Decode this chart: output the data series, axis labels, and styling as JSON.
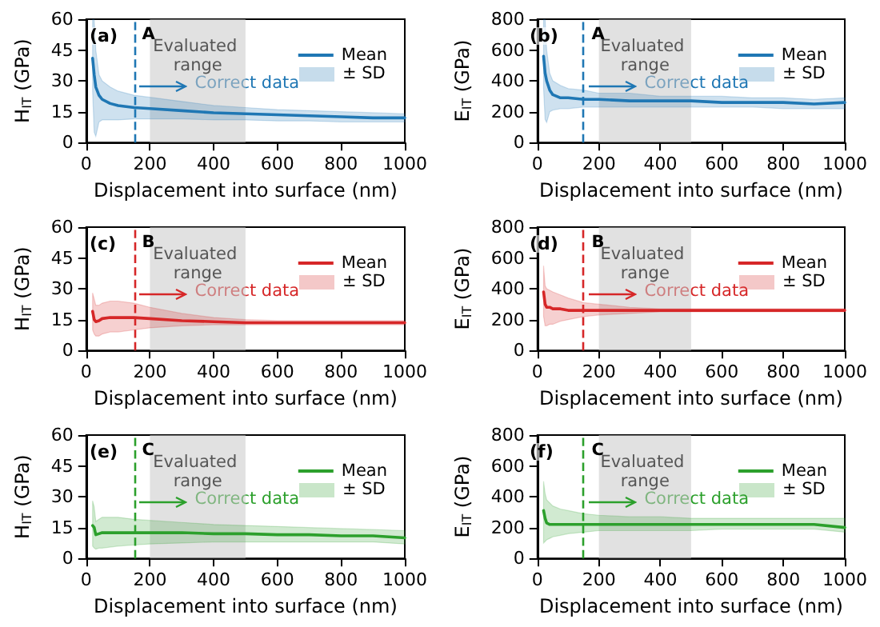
{
  "chart_data": [
    {
      "type": "line",
      "ylabel": "H$_{IT}$ (GPa)",
      "xlabel": "Displacement into surface (nm)",
      "x": [
        20,
        25,
        30,
        40,
        50,
        75,
        100,
        150,
        200,
        300,
        400,
        500,
        600,
        700,
        800,
        900,
        1000
      ],
      "xlim": [
        0,
        1000
      ],
      "xticks": [
        0,
        200,
        400,
        600,
        800,
        1000
      ],
      "ylim": [
        0,
        60
      ],
      "yticks": [
        0,
        15,
        30,
        45,
        60
      ],
      "legend": "top right",
      "annotations": [
        "(a)",
        "A",
        "Correct data",
        "± SD"
      ],
      "ref_lines": [
        {
          "axis": "x",
          "value": 150,
          "color": "#1f77b4",
          "line_style": "dashed"
        }
      ],
      "bands": [
        {
          "axis": "x",
          "from": 200,
          "to": 500,
          "label": "Evaluated range",
          "color": "#c8c8c8"
        }
      ],
      "series": [
        {
          "name": "Mean",
          "color": "#1f77b4",
          "values": [
            41,
            33,
            27,
            23,
            21,
            19,
            18,
            17,
            16.5,
            15.5,
            14.5,
            14,
            13.5,
            13,
            12.5,
            12,
            12
          ],
          "lower": [
            25,
            5,
            3,
            10,
            11,
            11,
            11,
            11.5,
            11.5,
            11.5,
            11,
            11,
            10.5,
            10.5,
            10,
            10,
            10
          ],
          "upper": [
            60,
            60,
            45,
            33,
            30,
            27,
            25,
            23,
            22,
            20,
            18,
            17,
            16,
            15.5,
            15,
            14.5,
            14
          ]
        }
      ]
    },
    {
      "type": "line",
      "ylabel": "E$_{IT}$ (GPa)",
      "xlabel": "Displacement into surface (nm)",
      "x": [
        20,
        25,
        30,
        40,
        50,
        75,
        100,
        150,
        200,
        300,
        400,
        500,
        600,
        700,
        800,
        900,
        1000
      ],
      "xlim": [
        0,
        1000
      ],
      "xticks": [
        0,
        200,
        400,
        600,
        800,
        1000
      ],
      "ylim": [
        0,
        800
      ],
      "yticks": [
        0,
        200,
        400,
        600,
        800
      ],
      "legend": "top right",
      "annotations": [
        "(b)",
        "A",
        "Correct data",
        "± SD"
      ],
      "ref_lines": [
        {
          "axis": "x",
          "value": 150,
          "color": "#1f77b4",
          "line_style": "dashed"
        }
      ],
      "bands": [
        {
          "axis": "x",
          "from": 200,
          "to": 500,
          "label": "Evaluated range",
          "color": "#c8c8c8"
        }
      ],
      "series": [
        {
          "name": "Mean",
          "color": "#1f77b4",
          "values": [
            560,
            450,
            400,
            340,
            310,
            290,
            290,
            280,
            280,
            270,
            270,
            270,
            260,
            260,
            260,
            250,
            260
          ],
          "lower": [
            350,
            150,
            130,
            200,
            210,
            220,
            220,
            230,
            230,
            230,
            230,
            230,
            230,
            230,
            220,
            220,
            220
          ],
          "upper": [
            800,
            800,
            600,
            450,
            400,
            370,
            350,
            340,
            320,
            320,
            300,
            300,
            300,
            290,
            290,
            280,
            290
          ]
        }
      ]
    },
    {
      "type": "line",
      "ylabel": "H$_{IT}$ (GPa)",
      "xlabel": "Displacement into surface (nm)",
      "x": [
        20,
        25,
        30,
        40,
        50,
        75,
        100,
        150,
        200,
        300,
        400,
        500,
        600,
        700,
        800,
        900,
        1000
      ],
      "xlim": [
        0,
        1000
      ],
      "xticks": [
        0,
        200,
        400,
        600,
        800,
        1000
      ],
      "ylim": [
        0,
        60
      ],
      "yticks": [
        0,
        15,
        30,
        45,
        60
      ],
      "legend": "top right",
      "annotations": [
        "(c)",
        "B",
        "Correct data",
        "± SD"
      ],
      "ref_lines": [
        {
          "axis": "x",
          "value": 150,
          "color": "#d62728",
          "line_style": "dashed"
        }
      ],
      "bands": [
        {
          "axis": "x",
          "from": 200,
          "to": 500,
          "label": "Evaluated range",
          "color": "#c8c8c8"
        }
      ],
      "series": [
        {
          "name": "Mean",
          "color": "#d62728",
          "values": [
            19,
            15,
            14,
            14.5,
            15.5,
            16,
            16,
            16,
            15.5,
            14.5,
            14,
            13.5,
            13.5,
            13.5,
            13.5,
            13.5,
            13.5
          ],
          "lower": [
            10,
            8,
            7,
            7,
            8,
            9,
            9,
            10,
            11,
            12,
            12.5,
            12.5,
            12.5,
            12.5,
            12.5,
            12.5,
            12.5
          ],
          "upper": [
            28,
            25,
            22,
            22,
            23,
            24,
            24,
            23,
            21,
            18,
            16,
            15,
            14.5,
            14.5,
            14.5,
            14.5,
            14.5
          ]
        }
      ]
    },
    {
      "type": "line",
      "ylabel": "E$_{IT}$ (GPa)",
      "xlabel": "Displacement into surface (nm)",
      "x": [
        20,
        25,
        30,
        40,
        50,
        75,
        100,
        150,
        200,
        300,
        400,
        500,
        600,
        700,
        800,
        900,
        1000
      ],
      "xlim": [
        0,
        1000
      ],
      "xticks": [
        0,
        200,
        400,
        600,
        800,
        1000
      ],
      "ylim": [
        0,
        800
      ],
      "yticks": [
        0,
        200,
        400,
        600,
        800
      ],
      "legend": "top right",
      "annotations": [
        "(d)",
        "B",
        "Correct data",
        "± SD"
      ],
      "ref_lines": [
        {
          "axis": "x",
          "value": 150,
          "color": "#d62728",
          "line_style": "dashed"
        }
      ],
      "bands": [
        {
          "axis": "x",
          "from": 200,
          "to": 500,
          "label": "Evaluated range",
          "color": "#c8c8c8"
        }
      ],
      "series": [
        {
          "name": "Mean",
          "color": "#d62728",
          "values": [
            380,
            300,
            280,
            280,
            270,
            270,
            260,
            260,
            260,
            260,
            260,
            260,
            260,
            260,
            260,
            260,
            260
          ],
          "lower": [
            220,
            160,
            160,
            170,
            170,
            190,
            200,
            220,
            230,
            240,
            250,
            250,
            250,
            250,
            250,
            250,
            250
          ],
          "upper": [
            550,
            420,
            400,
            390,
            380,
            360,
            340,
            310,
            300,
            280,
            270,
            270,
            270,
            270,
            270,
            270,
            270
          ]
        }
      ]
    },
    {
      "type": "line",
      "ylabel": "H$_{IT}$ (GPa)",
      "xlabel": "Displacement into surface (nm)",
      "x": [
        20,
        25,
        30,
        40,
        50,
        75,
        100,
        150,
        200,
        300,
        400,
        500,
        600,
        700,
        800,
        900,
        1000
      ],
      "xlim": [
        0,
        1000
      ],
      "xticks": [
        0,
        200,
        400,
        600,
        800,
        1000
      ],
      "ylim": [
        0,
        60
      ],
      "yticks": [
        0,
        15,
        30,
        45,
        60
      ],
      "legend": "top right",
      "annotations": [
        "(e)",
        "C",
        "Correct data",
        "± SD"
      ],
      "ref_lines": [
        {
          "axis": "x",
          "value": 150,
          "color": "#2ca02c",
          "line_style": "dashed"
        }
      ],
      "bands": [
        {
          "axis": "x",
          "from": 200,
          "to": 500,
          "label": "Evaluated range",
          "color": "#c8c8c8"
        }
      ],
      "series": [
        {
          "name": "Mean",
          "color": "#2ca02c",
          "values": [
            16,
            15,
            11.5,
            12,
            12.5,
            12.5,
            12.5,
            12.5,
            12.5,
            12.5,
            12,
            12,
            11.5,
            11.5,
            11,
            11,
            10
          ],
          "lower": [
            6,
            5,
            4.5,
            5,
            5,
            5.5,
            6,
            6.5,
            7,
            7.5,
            8,
            8,
            8,
            8,
            8,
            8,
            7
          ],
          "upper": [
            28,
            25,
            18,
            19,
            20,
            20,
            20,
            19,
            18.5,
            17.5,
            16.5,
            16,
            15.5,
            15,
            14.5,
            14,
            13.5
          ]
        }
      ]
    },
    {
      "type": "line",
      "ylabel": "E$_{IT}$ (GPa)",
      "xlabel": "Displacement into surface (nm)",
      "x": [
        20,
        25,
        30,
        40,
        50,
        75,
        100,
        150,
        200,
        300,
        400,
        500,
        600,
        700,
        800,
        900,
        1000
      ],
      "xlim": [
        0,
        1000
      ],
      "xticks": [
        0,
        200,
        400,
        600,
        800,
        1000
      ],
      "ylim": [
        0,
        800
      ],
      "yticks": [
        0,
        200,
        400,
        600,
        800
      ],
      "legend": "top right",
      "annotations": [
        "(f)",
        "C",
        "Correct data",
        "± SD"
      ],
      "ref_lines": [
        {
          "axis": "x",
          "value": 150,
          "color": "#2ca02c",
          "line_style": "dashed"
        }
      ],
      "bands": [
        {
          "axis": "x",
          "from": 200,
          "to": 500,
          "label": "Evaluated range",
          "color": "#c8c8c8"
        }
      ],
      "series": [
        {
          "name": "Mean",
          "color": "#2ca02c",
          "values": [
            310,
            260,
            230,
            220,
            220,
            220,
            220,
            220,
            220,
            220,
            220,
            220,
            220,
            220,
            220,
            220,
            200
          ],
          "lower": [
            100,
            110,
            120,
            130,
            140,
            150,
            160,
            170,
            180,
            180,
            180,
            180,
            190,
            190,
            190,
            190,
            170
          ],
          "upper": [
            500,
            420,
            380,
            360,
            340,
            320,
            310,
            290,
            280,
            270,
            270,
            260,
            260,
            260,
            260,
            260,
            260
          ]
        }
      ]
    }
  ]
}
